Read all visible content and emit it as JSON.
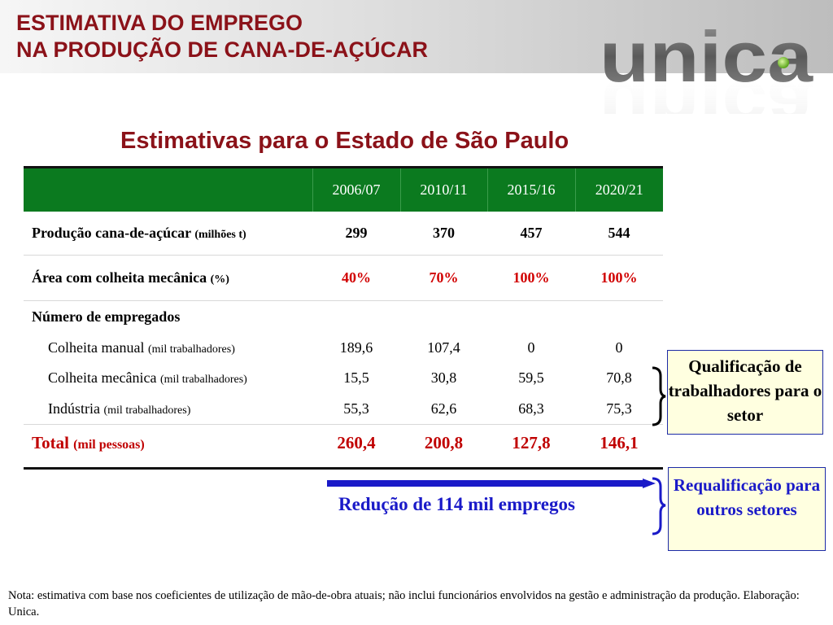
{
  "header": {
    "title_line1": "ESTIMATIVA DO EMPREGO",
    "title_line2": "NA PRODUÇÃO DE CANA-DE-AÇÚCAR",
    "logo_text": "unica"
  },
  "subtitle": "Estimativas para o Estado de São Paulo",
  "table": {
    "columns": [
      "2006/07",
      "2010/11",
      "2015/16",
      "2020/21"
    ],
    "production": {
      "label": "Produção cana-de-açúcar",
      "unit": "(milhões t)",
      "values": [
        "299",
        "370",
        "457",
        "544"
      ]
    },
    "area": {
      "label": "Área com colheita mecânica",
      "unit": "(%)",
      "values": [
        "40%",
        "70%",
        "100%",
        "100%"
      ]
    },
    "employees_header": "Número de empregados",
    "manual": {
      "label": "Colheita manual",
      "unit": "(mil trabalhadores)",
      "values": [
        "189,6",
        "107,4",
        "0",
        "0"
      ]
    },
    "mechanical": {
      "label": "Colheita mecânica",
      "unit": "(mil trabalhadores)",
      "values": [
        "15,5",
        "30,8",
        "59,5",
        "70,8"
      ]
    },
    "industry": {
      "label": "Indústria",
      "unit": "(mil trabalhadores)",
      "values": [
        "55,3",
        "62,6",
        "68,3",
        "75,3"
      ]
    },
    "total": {
      "label": "Total",
      "unit": "(mil pessoas)",
      "values": [
        "260,4",
        "200,8",
        "127,8",
        "146,1"
      ]
    }
  },
  "callouts": {
    "qualification": "Qualificação de trabalhadores para o setor",
    "requalification": "Requalificação para outros setores",
    "reduction": "Redução de 114 mil empregos"
  },
  "note": "Nota: estimativa com base nos coeficientes de utilização de mão-de-obra atuais; não inclui funcionários envolvidos na gestão e administração da produção. Elaboração: Unica.",
  "colors": {
    "title_red": "#8b1219",
    "header_green": "#0b7a1f",
    "accent_red": "#d10000",
    "accent_blue": "#1a1ac8",
    "callout_bg": "#ffffe0"
  }
}
